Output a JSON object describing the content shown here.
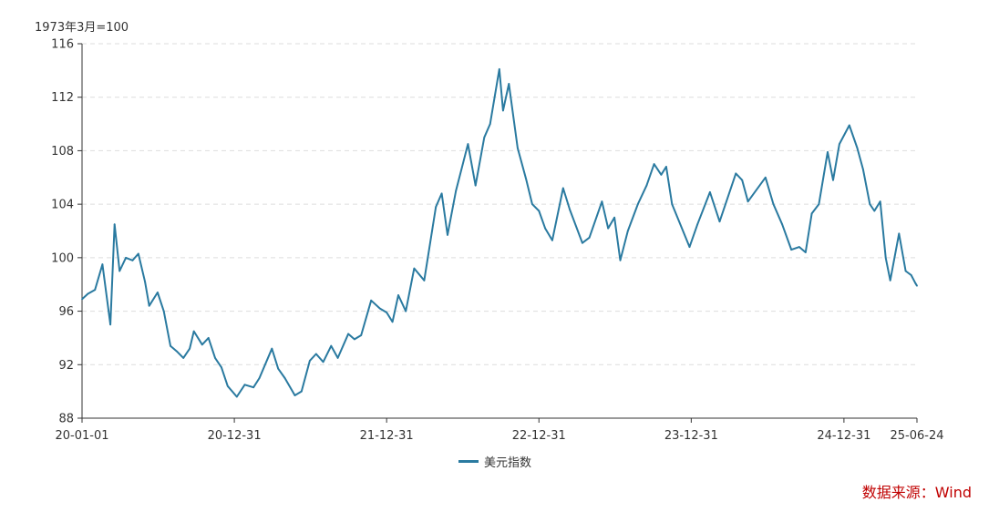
{
  "chart_data": {
    "type": "line",
    "unit_label": "1973年3月=100",
    "xticks": [
      {
        "date": "2020-01-01",
        "label": "20-01-01"
      },
      {
        "date": "2020-12-31",
        "label": "20-12-31"
      },
      {
        "date": "2021-12-31",
        "label": "21-12-31"
      },
      {
        "date": "2022-12-31",
        "label": "22-12-31"
      },
      {
        "date": "2023-12-31",
        "label": "23-12-31"
      },
      {
        "date": "2024-12-31",
        "label": "24-12-31"
      },
      {
        "date": "2025-06-24",
        "label": "25-06-24"
      }
    ],
    "xlim": [
      "2020-01-01",
      "2025-06-24"
    ],
    "ylim": [
      88,
      116
    ],
    "yticks": [
      88,
      92,
      96,
      100,
      104,
      108,
      112,
      116
    ],
    "grid": "horizontal dashed",
    "legend_position": "bottom-center",
    "series": [
      {
        "name": "美元指数",
        "color": "#2a7aa0",
        "points": [
          [
            "2020-01-01",
            96.9
          ],
          [
            "2020-01-15",
            97.3
          ],
          [
            "2020-02-01",
            97.6
          ],
          [
            "2020-02-19",
            99.5
          ],
          [
            "2020-03-09",
            95.0
          ],
          [
            "2020-03-19",
            102.5
          ],
          [
            "2020-03-31",
            99.0
          ],
          [
            "2020-04-15",
            100.0
          ],
          [
            "2020-05-01",
            99.8
          ],
          [
            "2020-05-15",
            100.3
          ],
          [
            "2020-05-31",
            98.2
          ],
          [
            "2020-06-10",
            96.4
          ],
          [
            "2020-06-30",
            97.4
          ],
          [
            "2020-07-15",
            96.0
          ],
          [
            "2020-07-31",
            93.4
          ],
          [
            "2020-08-15",
            93.0
          ],
          [
            "2020-08-31",
            92.5
          ],
          [
            "2020-09-15",
            93.2
          ],
          [
            "2020-09-25",
            94.5
          ],
          [
            "2020-10-15",
            93.5
          ],
          [
            "2020-10-30",
            94.0
          ],
          [
            "2020-11-15",
            92.5
          ],
          [
            "2020-11-30",
            91.8
          ],
          [
            "2020-12-15",
            90.4
          ],
          [
            "2021-01-06",
            89.6
          ],
          [
            "2021-01-25",
            90.5
          ],
          [
            "2021-02-15",
            90.3
          ],
          [
            "2021-03-01",
            91.0
          ],
          [
            "2021-03-31",
            93.2
          ],
          [
            "2021-04-15",
            91.7
          ],
          [
            "2021-05-01",
            91.0
          ],
          [
            "2021-05-25",
            89.7
          ],
          [
            "2021-06-10",
            90.0
          ],
          [
            "2021-06-30",
            92.3
          ],
          [
            "2021-07-15",
            92.8
          ],
          [
            "2021-08-01",
            92.2
          ],
          [
            "2021-08-20",
            93.4
          ],
          [
            "2021-09-05",
            92.5
          ],
          [
            "2021-09-30",
            94.3
          ],
          [
            "2021-10-15",
            93.9
          ],
          [
            "2021-10-31",
            94.2
          ],
          [
            "2021-11-24",
            96.8
          ],
          [
            "2021-12-15",
            96.2
          ],
          [
            "2021-12-31",
            95.9
          ],
          [
            "2022-01-14",
            95.2
          ],
          [
            "2022-01-28",
            97.2
          ],
          [
            "2022-02-15",
            96.0
          ],
          [
            "2022-03-07",
            99.2
          ],
          [
            "2022-03-31",
            98.3
          ],
          [
            "2022-04-28",
            103.8
          ],
          [
            "2022-05-12",
            104.8
          ],
          [
            "2022-05-26",
            101.7
          ],
          [
            "2022-06-15",
            105.0
          ],
          [
            "2022-07-14",
            108.5
          ],
          [
            "2022-08-01",
            105.4
          ],
          [
            "2022-08-22",
            109.0
          ],
          [
            "2022-09-05",
            110.0
          ],
          [
            "2022-09-27",
            114.1
          ],
          [
            "2022-10-06",
            111.0
          ],
          [
            "2022-10-20",
            113.0
          ],
          [
            "2022-11-10",
            108.2
          ],
          [
            "2022-11-30",
            105.9
          ],
          [
            "2022-12-15",
            104.0
          ],
          [
            "2022-12-31",
            103.5
          ],
          [
            "2023-01-15",
            102.2
          ],
          [
            "2023-02-01",
            101.3
          ],
          [
            "2023-02-27",
            105.2
          ],
          [
            "2023-03-15",
            103.6
          ],
          [
            "2023-04-14",
            101.1
          ],
          [
            "2023-05-01",
            101.5
          ],
          [
            "2023-05-31",
            104.2
          ],
          [
            "2023-06-15",
            102.2
          ],
          [
            "2023-06-30",
            103.0
          ],
          [
            "2023-07-14",
            99.8
          ],
          [
            "2023-08-01",
            102.0
          ],
          [
            "2023-08-25",
            104.0
          ],
          [
            "2023-09-15",
            105.4
          ],
          [
            "2023-10-03",
            107.0
          ],
          [
            "2023-10-20",
            106.2
          ],
          [
            "2023-11-01",
            106.8
          ],
          [
            "2023-11-15",
            104.0
          ],
          [
            "2023-12-27",
            100.8
          ],
          [
            "2024-01-15",
            102.5
          ],
          [
            "2024-02-14",
            104.9
          ],
          [
            "2024-03-08",
            102.7
          ],
          [
            "2024-04-16",
            106.3
          ],
          [
            "2024-05-01",
            105.8
          ],
          [
            "2024-05-15",
            104.2
          ],
          [
            "2024-06-26",
            106.0
          ],
          [
            "2024-07-15",
            104.0
          ],
          [
            "2024-08-05",
            102.5
          ],
          [
            "2024-08-27",
            100.6
          ],
          [
            "2024-09-15",
            100.8
          ],
          [
            "2024-09-30",
            100.4
          ],
          [
            "2024-10-15",
            103.3
          ],
          [
            "2024-11-01",
            104.0
          ],
          [
            "2024-11-22",
            107.9
          ],
          [
            "2024-12-05",
            105.8
          ],
          [
            "2024-12-20",
            108.5
          ],
          [
            "2025-01-13",
            109.9
          ],
          [
            "2025-02-01",
            108.2
          ],
          [
            "2025-02-15",
            106.6
          ],
          [
            "2025-03-03",
            104.0
          ],
          [
            "2025-03-14",
            103.5
          ],
          [
            "2025-03-28",
            104.2
          ],
          [
            "2025-04-10",
            100.0
          ],
          [
            "2025-04-21",
            98.3
          ],
          [
            "2025-05-12",
            101.8
          ],
          [
            "2025-05-28",
            99.0
          ],
          [
            "2025-06-10",
            98.7
          ],
          [
            "2025-06-20",
            98.1
          ],
          [
            "2025-06-24",
            97.9
          ]
        ]
      }
    ]
  },
  "legend": {
    "label": "美元指数",
    "color": "#2a7aa0"
  },
  "source": "数据来源：Wind"
}
